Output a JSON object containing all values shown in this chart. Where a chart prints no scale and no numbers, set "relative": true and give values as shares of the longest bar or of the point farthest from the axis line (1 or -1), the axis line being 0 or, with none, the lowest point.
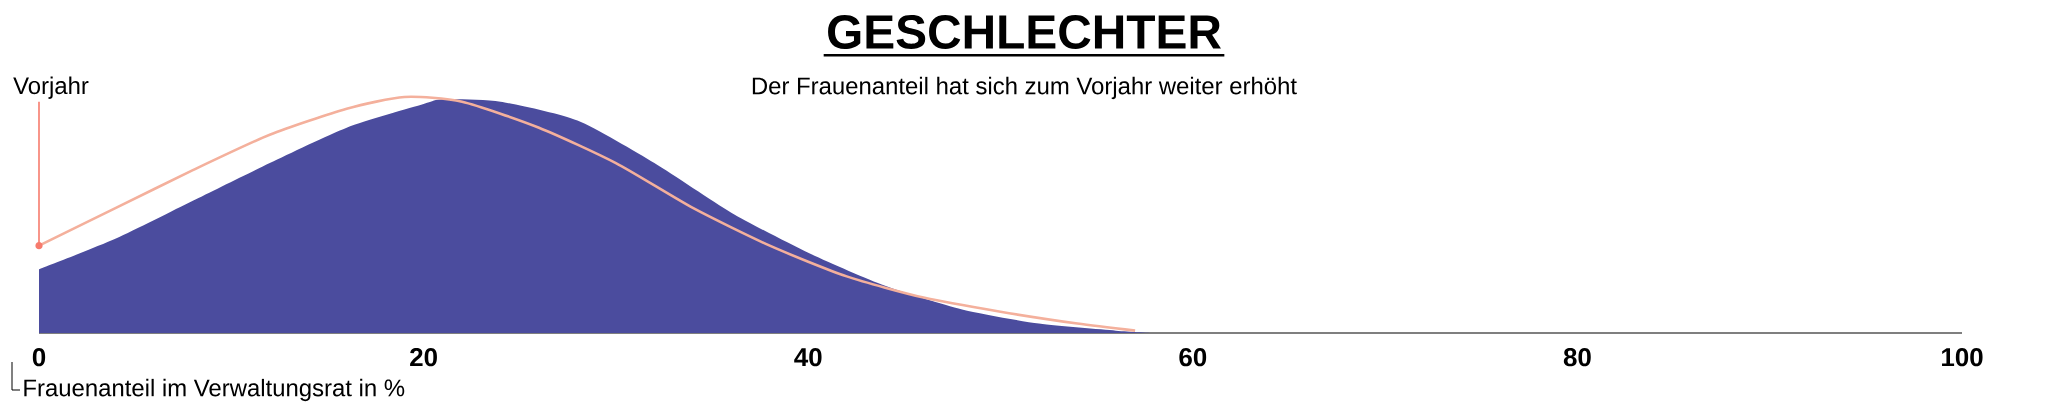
{
  "chart_data": {
    "type": "area",
    "title": "GESCHLECHTER",
    "subtitle": "Der Frauenanteil hat sich zum Vorjahr weiter erhöht",
    "xlabel": "Frauenanteil im Verwaltungsrat in %",
    "relative": true,
    "xlim": [
      0,
      100
    ],
    "xticks": [
      0,
      20,
      40,
      60,
      80,
      100
    ],
    "series": [
      {
        "color": "#4b4c9e",
        "x": [
          0,
          4,
          8,
          12,
          16,
          20,
          21,
          24,
          28,
          32,
          36,
          40,
          44,
          48,
          52,
          56,
          58
        ],
        "values": [
          0.27,
          0.4,
          0.56,
          0.72,
          0.87,
          0.97,
          0.99,
          0.98,
          0.9,
          0.72,
          0.51,
          0.34,
          0.2,
          0.1,
          0.04,
          0.01,
          0
        ]
      },
      {
        "type": "line",
        "name": "Vorjahr",
        "color": "#f4b09c",
        "x": [
          0,
          4,
          8,
          12,
          16,
          19,
          22,
          26,
          30,
          34,
          38,
          42,
          46,
          50,
          54,
          57
        ],
        "values": [
          0.37,
          0.53,
          0.69,
          0.84,
          0.95,
          1.0,
          0.98,
          0.87,
          0.72,
          0.53,
          0.37,
          0.24,
          0.15,
          0.09,
          0.04,
          0.01
        ]
      }
    ]
  }
}
